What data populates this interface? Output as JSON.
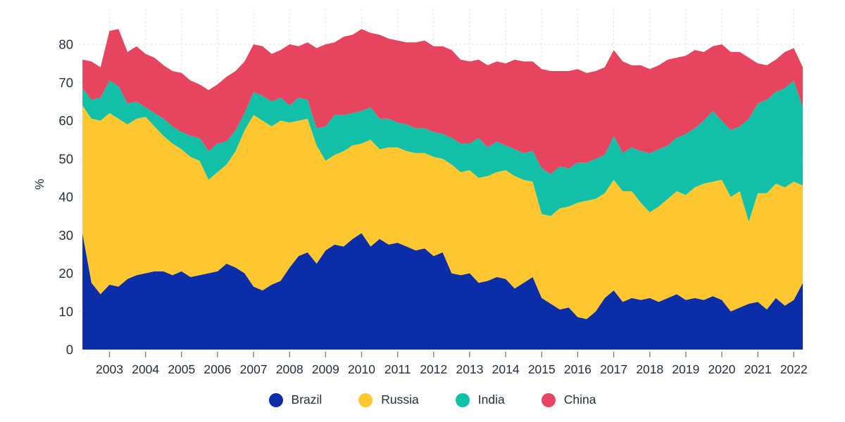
{
  "chart_data": {
    "type": "area",
    "stacked": true,
    "title": "",
    "xlabel": "",
    "ylabel": "%",
    "grid": "dashed",
    "legend_position": "bottom",
    "xlim": [
      2002.2,
      2022.3
    ],
    "ylim": [
      0,
      90
    ],
    "y_ticks": [
      0,
      10,
      20,
      30,
      40,
      50,
      60,
      70,
      80
    ],
    "x_tick_labels": [
      2003,
      2004,
      2005,
      2006,
      2007,
      2008,
      2009,
      2010,
      2011,
      2012,
      2013,
      2014,
      2015,
      2016,
      2017,
      2018,
      2019,
      2020,
      2021,
      2022
    ],
    "x": [
      2002.25,
      2002.5,
      2002.75,
      2003,
      2003.25,
      2003.5,
      2003.75,
      2004,
      2004.25,
      2004.5,
      2004.75,
      2005,
      2005.25,
      2005.5,
      2005.75,
      2006,
      2006.25,
      2006.5,
      2006.75,
      2007,
      2007.25,
      2007.5,
      2007.75,
      2008,
      2008.25,
      2008.5,
      2008.75,
      2009,
      2009.25,
      2009.5,
      2009.75,
      2010,
      2010.25,
      2010.5,
      2010.75,
      2011,
      2011.25,
      2011.5,
      2011.75,
      2012,
      2012.25,
      2012.5,
      2012.75,
      2013,
      2013.25,
      2013.5,
      2013.75,
      2014,
      2014.25,
      2014.5,
      2014.75,
      2015,
      2015.25,
      2015.5,
      2015.75,
      2016,
      2016.25,
      2016.5,
      2016.75,
      2017,
      2017.25,
      2017.5,
      2017.75,
      2018,
      2018.25,
      2018.5,
      2018.75,
      2019,
      2019.25,
      2019.5,
      2019.75,
      2020,
      2020.25,
      2020.5,
      2020.75,
      2021,
      2021.25,
      2021.5,
      2021.75,
      2022,
      2022.25
    ],
    "series": [
      {
        "name": "Brazil",
        "color": "#0b2da8",
        "values": [
          30.5,
          17.5,
          14.5,
          17,
          16.5,
          18.5,
          19.5,
          20,
          20.5,
          20.5,
          19.5,
          20.5,
          19,
          19.5,
          20,
          20.5,
          22.5,
          21.5,
          20,
          16.5,
          15.5,
          17,
          18,
          21.5,
          24.5,
          25.5,
          22.5,
          26,
          27.5,
          27,
          29,
          30.5,
          27,
          29,
          27.5,
          28,
          27,
          26,
          26.5,
          24.5,
          25.5,
          20,
          19.5,
          20,
          17.5,
          18,
          19,
          18.5,
          16,
          17.5,
          19,
          13.5,
          12,
          10.5,
          11,
          8.5,
          8,
          10,
          13.5,
          15.5,
          12.5,
          13.5,
          13,
          13.5,
          12.5,
          13.5,
          14.5,
          13,
          13.5,
          13,
          14,
          13,
          10,
          11,
          12,
          12.5,
          10.5,
          13.5,
          11.5,
          13,
          17.5
        ]
      },
      {
        "name": "Russia",
        "color": "#fec72f",
        "values": [
          33.5,
          43,
          45.5,
          45,
          44,
          40.5,
          41,
          41,
          38,
          35.5,
          34.5,
          32,
          31.5,
          30,
          24.5,
          26,
          26,
          30.5,
          37.5,
          45,
          44.5,
          41.5,
          42,
          38,
          35.5,
          35,
          31,
          23.5,
          23.5,
          25,
          24.5,
          23.5,
          28,
          23.5,
          25.5,
          25,
          25,
          25.5,
          25,
          26,
          24.5,
          28.5,
          27,
          27,
          27.5,
          27.5,
          27.5,
          28.5,
          29.5,
          27,
          25,
          22,
          23,
          26.5,
          26.5,
          30,
          31,
          29.5,
          27.5,
          29,
          29,
          28,
          25.5,
          22.5,
          25,
          26,
          27,
          27.5,
          29,
          30.5,
          30,
          31.5,
          30,
          30.5,
          21.5,
          28.5,
          30.5,
          30,
          31,
          31,
          25.5
        ]
      },
      {
        "name": "India",
        "color": "#11c0a7",
        "values": [
          4.5,
          5,
          6,
          8.5,
          8.5,
          5.5,
          4.5,
          2.5,
          3.5,
          4.5,
          4.5,
          4.5,
          5.5,
          6,
          7.5,
          7.5,
          6,
          5.5,
          4.5,
          6,
          6.5,
          6.5,
          6,
          4.5,
          6,
          5,
          4.5,
          9,
          10.5,
          9.5,
          8.5,
          8.5,
          8.5,
          8,
          7.5,
          6.5,
          7,
          6.5,
          6.5,
          6.5,
          6.5,
          7,
          7.5,
          7,
          10.5,
          7.5,
          8,
          6.5,
          7,
          7,
          8,
          12,
          11,
          11,
          10,
          10.5,
          10,
          10.5,
          10,
          11.5,
          10,
          11.5,
          13.5,
          15.5,
          15,
          14,
          14,
          16,
          15.5,
          16.5,
          18.5,
          15.5,
          17.5,
          17,
          27,
          23.5,
          24.5,
          24,
          26,
          26.5,
          20.5
        ]
      },
      {
        "name": "China",
        "color": "#e7455f",
        "values": [
          7.5,
          10,
          8,
          13,
          15,
          13.5,
          14.5,
          14,
          14.5,
          14,
          14.5,
          15.5,
          14.5,
          14,
          16,
          15.5,
          17,
          15.5,
          13.5,
          12.5,
          13,
          12.5,
          12.5,
          16,
          13.5,
          15,
          21,
          21.5,
          19,
          20.5,
          20.5,
          21.5,
          19.5,
          22,
          21,
          21.5,
          21.5,
          22.5,
          23,
          22.5,
          23,
          23,
          22,
          21.5,
          20.5,
          21.5,
          21,
          21.5,
          23.5,
          24,
          23.5,
          26,
          27,
          25,
          25.5,
          24.5,
          23.5,
          23,
          23,
          22.5,
          24,
          21.5,
          22.5,
          22,
          22,
          22.5,
          21,
          20.5,
          20.5,
          18,
          17,
          20,
          20.5,
          19.5,
          16,
          10.5,
          9,
          8.5,
          9.5,
          8.5,
          10.5
        ]
      }
    ]
  },
  "theme": {
    "background": "#ffffff",
    "text_color": "#242f3e",
    "grid_color": "#e2e2e6",
    "tick_color": "#6f7a87"
  }
}
